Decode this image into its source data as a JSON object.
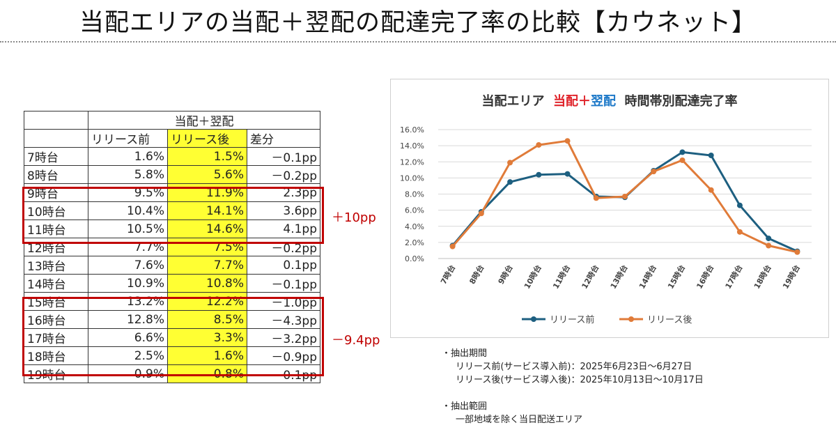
{
  "title": "当配エリアの当配＋翌配の配達完了率の比較【カウネット】",
  "table": {
    "group_header": "当配＋翌配",
    "col_headers": [
      "リリース前",
      "リリース後",
      "差分"
    ],
    "rows": [
      {
        "time": "7時台",
        "before": "1.6%",
        "after": "1.5%",
        "diff": "－0.1pp"
      },
      {
        "time": "8時台",
        "before": "5.8%",
        "after": "5.6%",
        "diff": "－0.2pp"
      },
      {
        "time": "9時台",
        "before": "9.5%",
        "after": "11.9%",
        "diff": "2.3pp"
      },
      {
        "time": "10時台",
        "before": "10.4%",
        "after": "14.1%",
        "diff": "3.6pp"
      },
      {
        "time": "11時台",
        "before": "10.5%",
        "after": "14.6%",
        "diff": "4.1pp"
      },
      {
        "time": "12時台",
        "before": "7.7%",
        "after": "7.5%",
        "diff": "－0.2pp"
      },
      {
        "time": "13時台",
        "before": "7.6%",
        "after": "7.7%",
        "diff": "0.1pp"
      },
      {
        "time": "14時台",
        "before": "10.9%",
        "after": "10.8%",
        "diff": "－0.1pp"
      },
      {
        "time": "15時台",
        "before": "13.2%",
        "after": "12.2%",
        "diff": "－1.0pp"
      },
      {
        "time": "16時台",
        "before": "12.8%",
        "after": "8.5%",
        "diff": "－4.3pp"
      },
      {
        "time": "17時台",
        "before": "6.6%",
        "after": "3.3%",
        "diff": "－3.2pp"
      },
      {
        "time": "18時台",
        "before": "2.5%",
        "after": "1.6%",
        "diff": "－0.9pp"
      },
      {
        "time": "19時台",
        "before": "0.9%",
        "after": "0.8%",
        "diff": "－0.1pp"
      }
    ],
    "highlight_after_color": "#ffff33"
  },
  "annotations": {
    "up": "＋10pp",
    "down": "－9.4pp",
    "color": "#c00000"
  },
  "chart_data": {
    "type": "line",
    "title_parts": [
      "当配エリア",
      "当配",
      "＋",
      "翌配",
      "時間帯別配達完了率"
    ],
    "categories": [
      "7時台",
      "8時台",
      "9時台",
      "10時台",
      "11時台",
      "12時台",
      "13時台",
      "14時台",
      "15時台",
      "16時台",
      "17時台",
      "18時台",
      "19時台"
    ],
    "series": [
      {
        "name": "リリース前",
        "color": "#1d5f80",
        "values": [
          1.6,
          5.8,
          9.5,
          10.4,
          10.5,
          7.7,
          7.6,
          10.9,
          13.2,
          12.8,
          6.6,
          2.5,
          0.9
        ]
      },
      {
        "name": "リリース後",
        "color": "#e07b39",
        "values": [
          1.5,
          5.6,
          11.9,
          14.1,
          14.6,
          7.5,
          7.7,
          10.8,
          12.2,
          8.5,
          3.3,
          1.6,
          0.8
        ]
      }
    ],
    "ylim": [
      0,
      16
    ],
    "yticks": [
      "0.0%",
      "2.0%",
      "4.0%",
      "6.0%",
      "8.0%",
      "10.0%",
      "12.0%",
      "14.0%",
      "16.0%"
    ],
    "xlabel": "",
    "ylabel": "",
    "grid": true,
    "legend_position": "bottom"
  },
  "notes": {
    "period_heading": "・抽出期間",
    "period_before": "リリース前(サービス導入前)：2025年6月23日～6月27日",
    "period_after": "リリース後(サービス導入後)：2025年10月13日～10月17日",
    "range_heading": "・抽出範囲",
    "range_text": "一部地域を除く当日配送エリア"
  }
}
